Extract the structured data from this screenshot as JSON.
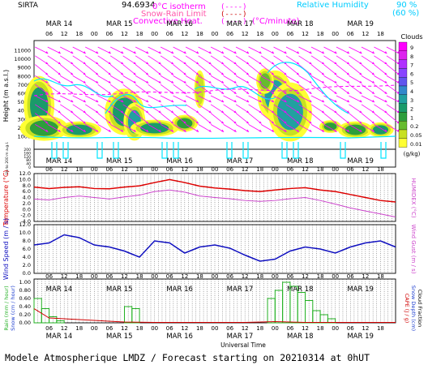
{
  "header": {
    "site": "SIRTA",
    "coords": "94.6934",
    "zero_isotherm": "0°C isotherm",
    "snow_rain": "Snow-Rain Limit",
    "convective": "Convective Heat.",
    "convective_unit": "(°C/minute)",
    "rh_label": "Relative Humidity",
    "rh_90": "90 %",
    "rh_60": "(60 %)",
    "paren_a": "(----)",
    "paren_b": "(----)",
    "paren_c": "(----)"
  },
  "footer": "Modele Atmospherique LMDZ / Forecast starting on 20210314 at 0hUT",
  "xaxis": {
    "hour_ticks": [
      "06",
      "12",
      "18",
      "00",
      "06",
      "12",
      "18",
      "00",
      "06",
      "12",
      "18",
      "00",
      "06",
      "12",
      "18",
      "00",
      "06",
      "12",
      "18",
      "00",
      "06",
      "12",
      "18"
    ],
    "day_labels": [
      "MAR 14",
      "MAR 15",
      "MAR 16",
      "MAR 17",
      "MAR 18",
      "MAR 19"
    ],
    "bottom_title": "Universal Time"
  },
  "colors": {
    "magenta": "#ff00ff",
    "cyan": "#00e5ff",
    "temp_red": "#dd0000",
    "humidex_purple": "#cc44cc",
    "wind_blue": "#1010c0",
    "rain_green": "#22b022",
    "snow_blue": "#2040d0",
    "cape_red": "#d00000"
  },
  "chart_data": [
    {
      "type": "heatmap",
      "title": "Clouds",
      "ylabel": "Height (m a.s.l.)",
      "ylabel_low": "Up to 200 m a.g.l.",
      "unit": "(g/kg)",
      "y_ticks": [
        "11000",
        "10000",
        "9000",
        "8000",
        "7000",
        "6000",
        "5000",
        "4000",
        "3000",
        "2000",
        "1000",
        "200",
        "180",
        "160",
        "140",
        "120",
        "100",
        "80",
        "60",
        "40",
        "20",
        "0"
      ],
      "colorbar_labels": [
        "9",
        "8",
        "7",
        "6",
        "5",
        "4",
        "3",
        "2",
        "1",
        "0.2",
        "0.05",
        "0.01"
      ],
      "colorbar_colors": [
        "#ff00ff",
        "#dd22ee",
        "#b030ff",
        "#8844ff",
        "#6055ee",
        "#3388cc",
        "#22a0a0",
        "#1a9a6a",
        "#2d9e3c",
        "#66bb2e",
        "#c8e020",
        "#ffff33"
      ]
    },
    {
      "type": "line",
      "ylabel": "Temperature (°C)",
      "ylabel_right": "HUMIDEX (°C)",
      "y_ticks": [
        "12.0",
        "10.0",
        "8.0",
        "6.0",
        "4.0",
        "2.0",
        "0.0",
        "-2.0",
        "-4.0"
      ],
      "ylim": [
        -4,
        12
      ],
      "x_hours": [
        0,
        6,
        12,
        18,
        24,
        30,
        36,
        42,
        48,
        54,
        60,
        66,
        72,
        78,
        84,
        90,
        96,
        102,
        108,
        114,
        120,
        126,
        132,
        138,
        144
      ],
      "series": [
        {
          "values": [
            7.5,
            7.0,
            7.4,
            7.6,
            7.0,
            6.9,
            7.5,
            7.9,
            9.0,
            10.0,
            9.0,
            7.8,
            7.2,
            6.8,
            6.3,
            6.0,
            6.5,
            7.0,
            7.3,
            6.5,
            6.0,
            5.0,
            4.0,
            3.0,
            2.5
          ]
        },
        {
          "values": [
            3.5,
            3.2,
            4.0,
            4.5,
            4.0,
            3.5,
            4.2,
            4.8,
            6.0,
            6.5,
            5.8,
            4.5,
            4.0,
            3.6,
            3.0,
            2.7,
            3.0,
            3.6,
            4.0,
            3.0,
            1.8,
            0.5,
            -0.5,
            -1.5,
            -2.5
          ]
        }
      ]
    },
    {
      "type": "line",
      "ylabel": "Wind Speed (m / s)",
      "ylabel_right": "Wind Gust (m / s)",
      "y_ticks": [
        "12.0",
        "10.0",
        "8.0",
        "6.0",
        "4.0",
        "2.0",
        "0.0"
      ],
      "ylim": [
        0,
        12
      ],
      "x_hours": [
        0,
        6,
        12,
        18,
        24,
        30,
        36,
        42,
        48,
        54,
        60,
        66,
        72,
        78,
        84,
        90,
        96,
        102,
        108,
        114,
        120,
        126,
        132,
        138,
        144
      ],
      "series": [
        {
          "values": [
            7.0,
            7.5,
            9.5,
            8.8,
            7.0,
            6.5,
            5.5,
            4.0,
            8.0,
            7.5,
            5.0,
            6.5,
            7.0,
            6.2,
            4.5,
            3.0,
            3.5,
            5.5,
            6.5,
            6.0,
            5.0,
            6.5,
            7.5,
            8.0,
            6.5
          ]
        }
      ]
    },
    {
      "type": "bar",
      "ylabel": "Rain (mm / hour)",
      "ylabel2": "Snow (cm / hour)",
      "ylabel_right": "CAPE (J / g)",
      "ylabel_right2": "Snow Depth (cm)",
      "ylabel_right3": "Cloud Fraction",
      "y_ticks": [
        "1.00",
        "0.80",
        "0.60",
        "0.40",
        "0.20",
        "0.00"
      ],
      "ylim": [
        0,
        1
      ],
      "rain": [
        [
          0,
          0.6
        ],
        [
          3,
          0.35
        ],
        [
          6,
          0.15
        ],
        [
          9,
          0.05
        ],
        [
          36,
          0.4
        ],
        [
          39,
          0.35
        ],
        [
          93,
          0.6
        ],
        [
          96,
          0.8
        ],
        [
          99,
          1.0
        ],
        [
          102,
          0.9
        ],
        [
          105,
          0.75
        ],
        [
          108,
          0.55
        ],
        [
          111,
          0.3
        ],
        [
          114,
          0.2
        ],
        [
          117,
          0.1
        ]
      ],
      "cape": [
        [
          0,
          0.35
        ],
        [
          6,
          0.12
        ],
        [
          18,
          0.08
        ],
        [
          36,
          0.02
        ],
        [
          48,
          0.01
        ],
        [
          60,
          0.01
        ],
        [
          72,
          0.01
        ],
        [
          84,
          0.01
        ],
        [
          96,
          0.03
        ],
        [
          108,
          0.01
        ],
        [
          120,
          0.01
        ],
        [
          132,
          0.01
        ],
        [
          144,
          0.01
        ]
      ]
    }
  ]
}
